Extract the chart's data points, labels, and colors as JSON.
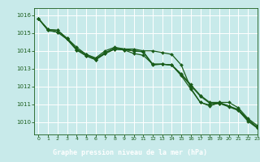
{
  "background_color": "#c8eaea",
  "plot_bg_color": "#c8eaea",
  "xlabel_bg_color": "#2d6b2d",
  "grid_color": "#ffffff",
  "line_color": "#1a5c1a",
  "xlabel": "Graphe pression niveau de la mer (hPa)",
  "xlabel_color": "#ffffff",
  "ylim": [
    1009.3,
    1016.4
  ],
  "xlim": [
    -0.5,
    23
  ],
  "yticks": [
    1010,
    1011,
    1012,
    1013,
    1014,
    1015,
    1016
  ],
  "xticks": [
    0,
    1,
    2,
    3,
    4,
    5,
    6,
    7,
    8,
    9,
    10,
    11,
    12,
    13,
    14,
    15,
    16,
    17,
    18,
    19,
    20,
    21,
    22,
    23
  ],
  "tick_color": "#1a5c1a",
  "series": [
    [
      1015.8,
      1015.2,
      1015.15,
      1014.7,
      1014.1,
      1013.8,
      1013.6,
      1014.0,
      1014.2,
      1014.1,
      1014.1,
      1014.0,
      1014.0,
      1013.9,
      1013.8,
      1013.2,
      1011.9,
      1011.1,
      1010.9,
      1011.1,
      1011.1,
      1010.8,
      1010.2,
      1009.8
    ],
    [
      1015.8,
      1015.2,
      1015.15,
      1014.7,
      1014.2,
      1013.8,
      1013.55,
      1013.9,
      1014.15,
      1014.1,
      1014.0,
      1013.95,
      1013.25,
      1013.25,
      1013.2,
      1012.7,
      1012.1,
      1011.5,
      1011.1,
      1011.1,
      1010.9,
      1010.7,
      1010.15,
      1009.7
    ],
    [
      1015.8,
      1015.15,
      1015.05,
      1014.65,
      1014.05,
      1013.72,
      1013.5,
      1013.85,
      1014.1,
      1014.05,
      1014.0,
      1013.95,
      1013.2,
      1013.25,
      1013.2,
      1012.65,
      1012.05,
      1011.45,
      1011.05,
      1011.05,
      1010.85,
      1010.65,
      1010.1,
      1009.7
    ],
    [
      1015.8,
      1015.15,
      1015.05,
      1014.65,
      1014.05,
      1013.72,
      1013.5,
      1013.85,
      1014.1,
      1014.05,
      1013.85,
      1013.75,
      1013.25,
      1013.25,
      1013.2,
      1012.6,
      1011.85,
      1011.1,
      1010.95,
      1011.05,
      1010.9,
      1010.65,
      1010.05,
      1009.65
    ]
  ]
}
